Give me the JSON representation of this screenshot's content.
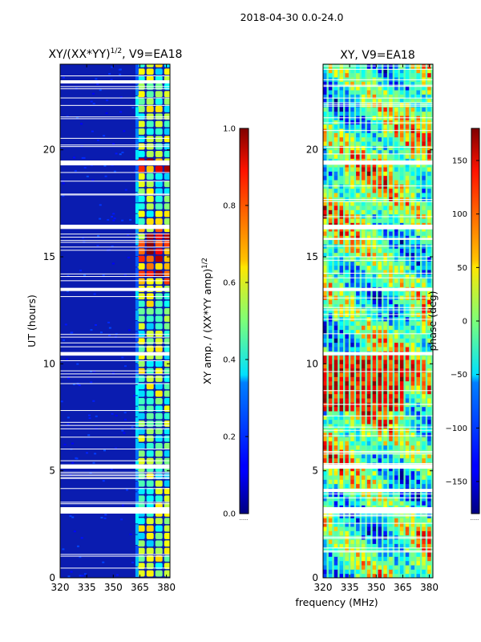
{
  "figure": {
    "suptitle": "2018-04-30 0.0-24.0",
    "shared_xlabel": "frequency (MHz)"
  },
  "chart_data": [
    {
      "type": "heatmap",
      "title_main": "XY/(XX*YY)",
      "title_sup": "1/2",
      "title_tail": ", V9=EA18",
      "xlabel": "",
      "ylabel": "UT (hours)",
      "xlim": [
        320,
        382
      ],
      "ylim": [
        0,
        24
      ],
      "xticks": [
        320,
        335,
        350,
        365,
        380
      ],
      "yticks": [
        0,
        5,
        10,
        15,
        20
      ],
      "gap_bands_hours": [
        [
          3.0,
          3.3
        ],
        [
          5.1,
          5.3
        ],
        [
          10.4,
          10.55
        ],
        [
          13.4,
          13.55
        ],
        [
          16.3,
          16.5
        ],
        [
          19.3,
          19.5
        ],
        [
          23.1,
          23.25
        ]
      ],
      "bright_channels_mhz": [
        366,
        371,
        376,
        381
      ],
      "colorbar": {
        "label_main": "XY amp. / (XX*YY amp)",
        "label_sup": "1/2",
        "range": [
          0.0,
          1.0
        ],
        "ticks": [
          "0.0",
          "0.2",
          "0.4",
          "0.6",
          "0.8",
          "1.0"
        ],
        "bottom_note": "......"
      }
    },
    {
      "type": "heatmap",
      "title": "XY, V9=EA18",
      "xlabel": "frequency (MHz)",
      "ylabel": "",
      "xlim": [
        320,
        382
      ],
      "ylim": [
        0,
        24
      ],
      "xticks": [
        320,
        335,
        350,
        365,
        380
      ],
      "yticks": [
        0,
        5,
        10,
        15,
        20
      ],
      "gap_bands_hours": [
        [
          3.0,
          3.3
        ],
        [
          4.0,
          4.15
        ],
        [
          5.1,
          5.3
        ],
        [
          10.4,
          10.55
        ],
        [
          13.4,
          13.55
        ],
        [
          16.3,
          16.5
        ],
        [
          19.3,
          19.5
        ]
      ],
      "colorbar": {
        "label": "phase (deg)",
        "range": [
          -180,
          180
        ],
        "ticks": [
          "150",
          "100",
          "50",
          "0",
          "−50",
          "−100",
          "−150"
        ],
        "tick_values": [
          150,
          100,
          50,
          0,
          -50,
          -100,
          -150
        ],
        "bottom_note": "......"
      }
    }
  ]
}
